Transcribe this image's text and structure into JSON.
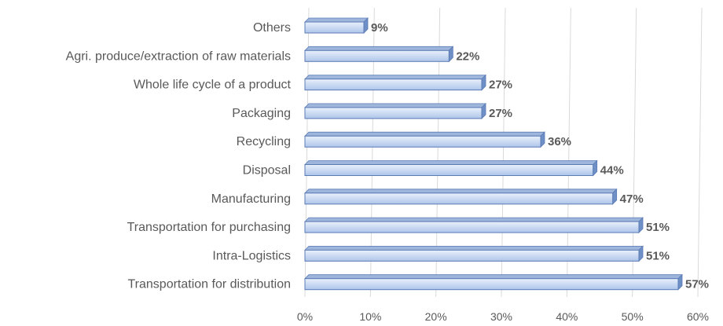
{
  "chart_data": {
    "type": "bar",
    "orientation": "horizontal",
    "three_d": true,
    "categories": [
      "Others",
      "Agri. produce/extraction of raw materials",
      "Whole life cycle of a product",
      "Packaging",
      "Recycling",
      "Disposal",
      "Manufacturing",
      "Transportation for purchasing",
      "Intra-Logistics",
      "Transportation for distribution"
    ],
    "values": [
      9,
      22,
      27,
      27,
      36,
      44,
      47,
      51,
      51,
      57
    ],
    "data_labels": [
      "9%",
      "22%",
      "27%",
      "27%",
      "36%",
      "44%",
      "47%",
      "51%",
      "51%",
      "57%"
    ],
    "x_ticks": [
      "0%",
      "10%",
      "20%",
      "30%",
      "40%",
      "50%",
      "60%"
    ],
    "xlim": [
      0,
      60
    ],
    "grid": true,
    "legend": "none",
    "colors": {
      "bar_front_top": "#e9f0fb",
      "bar_front_bottom": "#aec5ea",
      "bar_border": "#5b7bb5",
      "bar_top_face": "#9fb6dc",
      "bar_side_face": "#6f8fc7",
      "gridline": "#d9d9d9",
      "text": "#595959"
    }
  }
}
